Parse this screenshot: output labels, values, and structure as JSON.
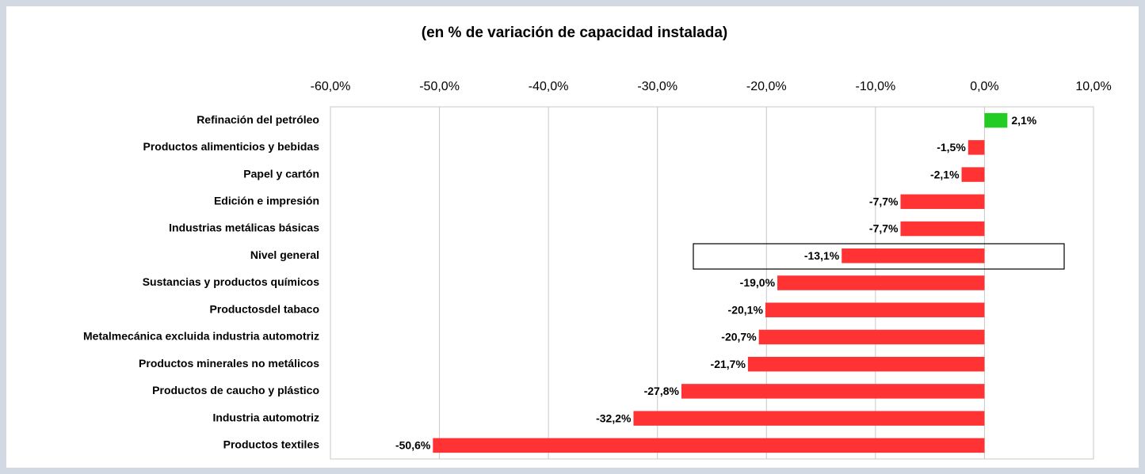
{
  "chart_data": {
    "type": "bar",
    "orientation": "horizontal",
    "title": "(en % de variación de capacidad instalada)",
    "categories": [
      "Refinación del petróleo",
      "Productos alimenticios y bebidas",
      "Papel y cartón",
      "Edición e impresión",
      "Industrias metálicas básicas",
      "Nivel general",
      "Sustancias y productos químicos",
      "Productosdel tabaco",
      "Metalmecánica excluida industria automotriz",
      "Productos minerales no metálicos",
      "Productos de caucho y plástico",
      "Industria automotriz",
      "Productos textiles"
    ],
    "values": [
      2.1,
      -1.5,
      -2.1,
      -7.7,
      -7.7,
      -13.1,
      -19.0,
      -20.1,
      -20.7,
      -21.7,
      -27.8,
      -32.2,
      -50.6
    ],
    "value_labels": [
      "2,1%",
      "-1,5%",
      "-2,1%",
      "-7,7%",
      "-7,7%",
      "-13,1%",
      "-19,0%",
      "-20,1%",
      "-20,7%",
      "-21,7%",
      "-27,8%",
      "-32,2%",
      "-50,6%"
    ],
    "positive_color": "#22cc22",
    "negative_color": "#ff3333",
    "xlim": [
      -60,
      10
    ],
    "xticks": [
      {
        "value": -60,
        "label": "-60,0%"
      },
      {
        "value": -50,
        "label": "-50,0%"
      },
      {
        "value": -40,
        "label": "-40,0%"
      },
      {
        "value": -30,
        "label": "-30,0%"
      },
      {
        "value": -20,
        "label": "-20,0%"
      },
      {
        "value": -10,
        "label": "-10,0%"
      },
      {
        "value": 0,
        "label": "0,0%"
      },
      {
        "value": 10,
        "label": "10,0%"
      }
    ],
    "grid": true
  }
}
